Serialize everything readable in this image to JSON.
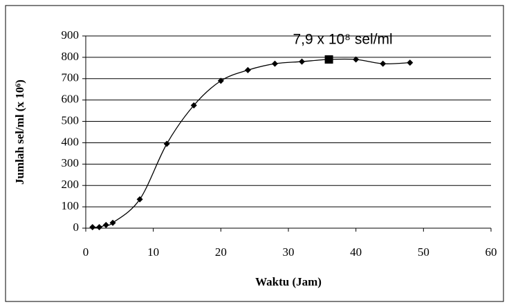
{
  "chart_data": {
    "type": "line",
    "x_label": "Waktu (Jam)",
    "y_label": "Jumlah sel/ml (x 10⁶)",
    "x": [
      1,
      2,
      3,
      4,
      8,
      12,
      16,
      20,
      24,
      28,
      32,
      36,
      40,
      44,
      48
    ],
    "series": [
      {
        "color": "#000000",
        "values": [
          5,
          5,
          15,
          25,
          135,
          395,
          575,
          690,
          740,
          770,
          780,
          790,
          790,
          770,
          775
        ]
      }
    ],
    "annotation": {
      "text": "7,9 x 10⁸ sel/ml",
      "x": 36,
      "y": 790
    },
    "xlim": [
      0,
      60
    ],
    "xticks": [
      0,
      10,
      20,
      30,
      40,
      50,
      60
    ],
    "ylim": [
      0,
      900
    ],
    "yticks": [
      0,
      100,
      200,
      300,
      400,
      500,
      600,
      700,
      800,
      900
    ],
    "grid": true
  }
}
